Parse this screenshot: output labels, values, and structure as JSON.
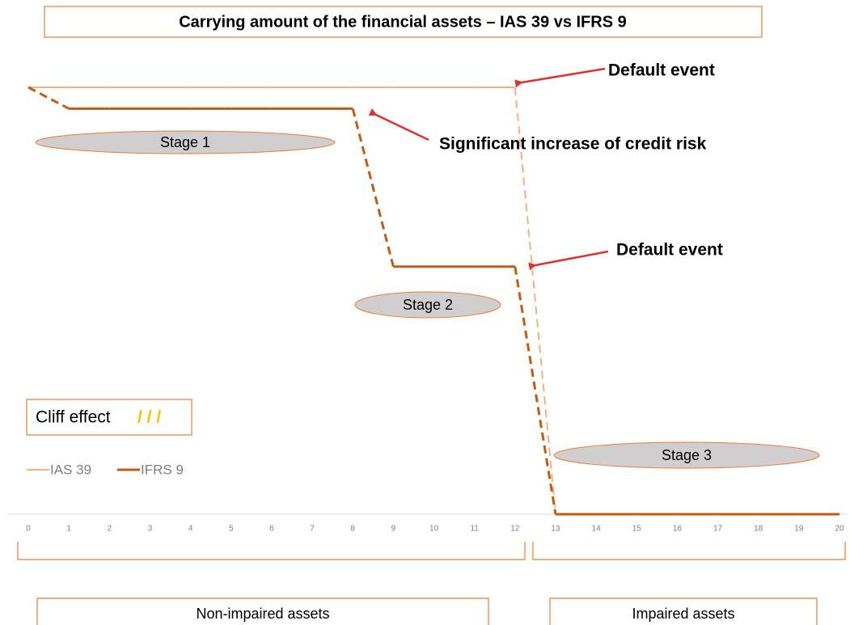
{
  "chart_data": {
    "type": "line",
    "title": "Carrying amount of the financial assets – IAS 39 vs IFRS 9",
    "x": [
      0,
      1,
      2,
      3,
      4,
      5,
      6,
      7,
      8,
      9,
      10,
      11,
      12,
      13,
      14,
      15,
      16,
      17,
      18,
      19,
      20
    ],
    "xlim": [
      0,
      20
    ],
    "xticks": [
      0,
      1,
      2,
      3,
      4,
      5,
      6,
      7,
      8,
      9,
      10,
      11,
      12,
      13,
      14,
      15,
      16,
      17,
      18,
      19,
      20
    ],
    "ylim": [
      0,
      100
    ],
    "series": [
      {
        "name": "IAS 39",
        "color": "#f4b183",
        "values": [
          100,
          100,
          100,
          100,
          100,
          100,
          100,
          100,
          100,
          100,
          100,
          100,
          100,
          0,
          0,
          0,
          0,
          0,
          0,
          0,
          0
        ]
      },
      {
        "name": "IFRS 9",
        "color": "#c55a11",
        "values": [
          100,
          95,
          95,
          95,
          95,
          95,
          95,
          95,
          95,
          58,
          58,
          58,
          58,
          0,
          0,
          0,
          0,
          0,
          0,
          0,
          0
        ]
      }
    ],
    "annotations": [
      "Default event",
      "Significant increase of credit risk",
      "Default event"
    ],
    "stages": [
      "Stage 1",
      "Stage 2",
      "Stage 3"
    ],
    "cliff_label": "Cliff effect",
    "cliff_marker": "/ / /",
    "groups": [
      "Non-impaired assets",
      "Impaired assets"
    ]
  }
}
